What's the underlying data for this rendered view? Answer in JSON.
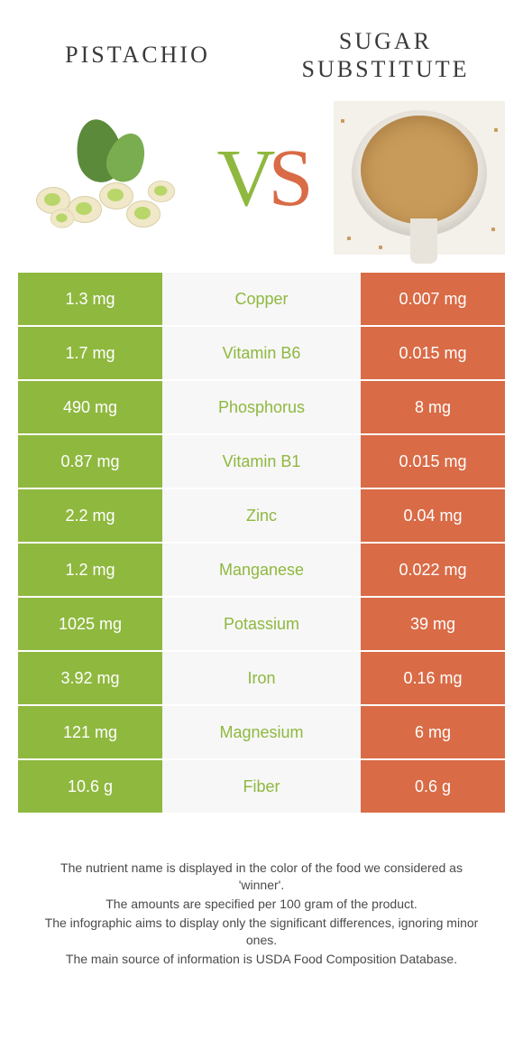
{
  "colors": {
    "left": "#8fb83f",
    "right": "#d96b46",
    "mid_bg": "#f7f7f7",
    "text_dark": "#3a3a3a"
  },
  "header": {
    "left_title": "Pistachio",
    "right_title": "Sugar\nsubstitute"
  },
  "vs": {
    "v": "V",
    "s": "S"
  },
  "rows": [
    {
      "left": "1.3 mg",
      "label": "Copper",
      "right": "0.007 mg",
      "winner": "left"
    },
    {
      "left": "1.7 mg",
      "label": "Vitamin B6",
      "right": "0.015 mg",
      "winner": "left"
    },
    {
      "left": "490 mg",
      "label": "Phosphorus",
      "right": "8 mg",
      "winner": "left"
    },
    {
      "left": "0.87 mg",
      "label": "Vitamin B1",
      "right": "0.015 mg",
      "winner": "left"
    },
    {
      "left": "2.2 mg",
      "label": "Zinc",
      "right": "0.04 mg",
      "winner": "left"
    },
    {
      "left": "1.2 mg",
      "label": "Manganese",
      "right": "0.022 mg",
      "winner": "left"
    },
    {
      "left": "1025 mg",
      "label": "Potassium",
      "right": "39 mg",
      "winner": "left"
    },
    {
      "left": "3.92 mg",
      "label": "Iron",
      "right": "0.16 mg",
      "winner": "left"
    },
    {
      "left": "121 mg",
      "label": "Magnesium",
      "right": "6 mg",
      "winner": "left"
    },
    {
      "left": "10.6 g",
      "label": "Fiber",
      "right": "0.6 g",
      "winner": "left"
    }
  ],
  "footer": {
    "line1": "The nutrient name is displayed in the color of the food we considered as 'winner'.",
    "line2": "The amounts are specified per 100 gram of the product.",
    "line3": "The infographic aims to display only the significant differences, ignoring minor ones.",
    "line4": "The main source of information is USDA Food Composition Database."
  }
}
